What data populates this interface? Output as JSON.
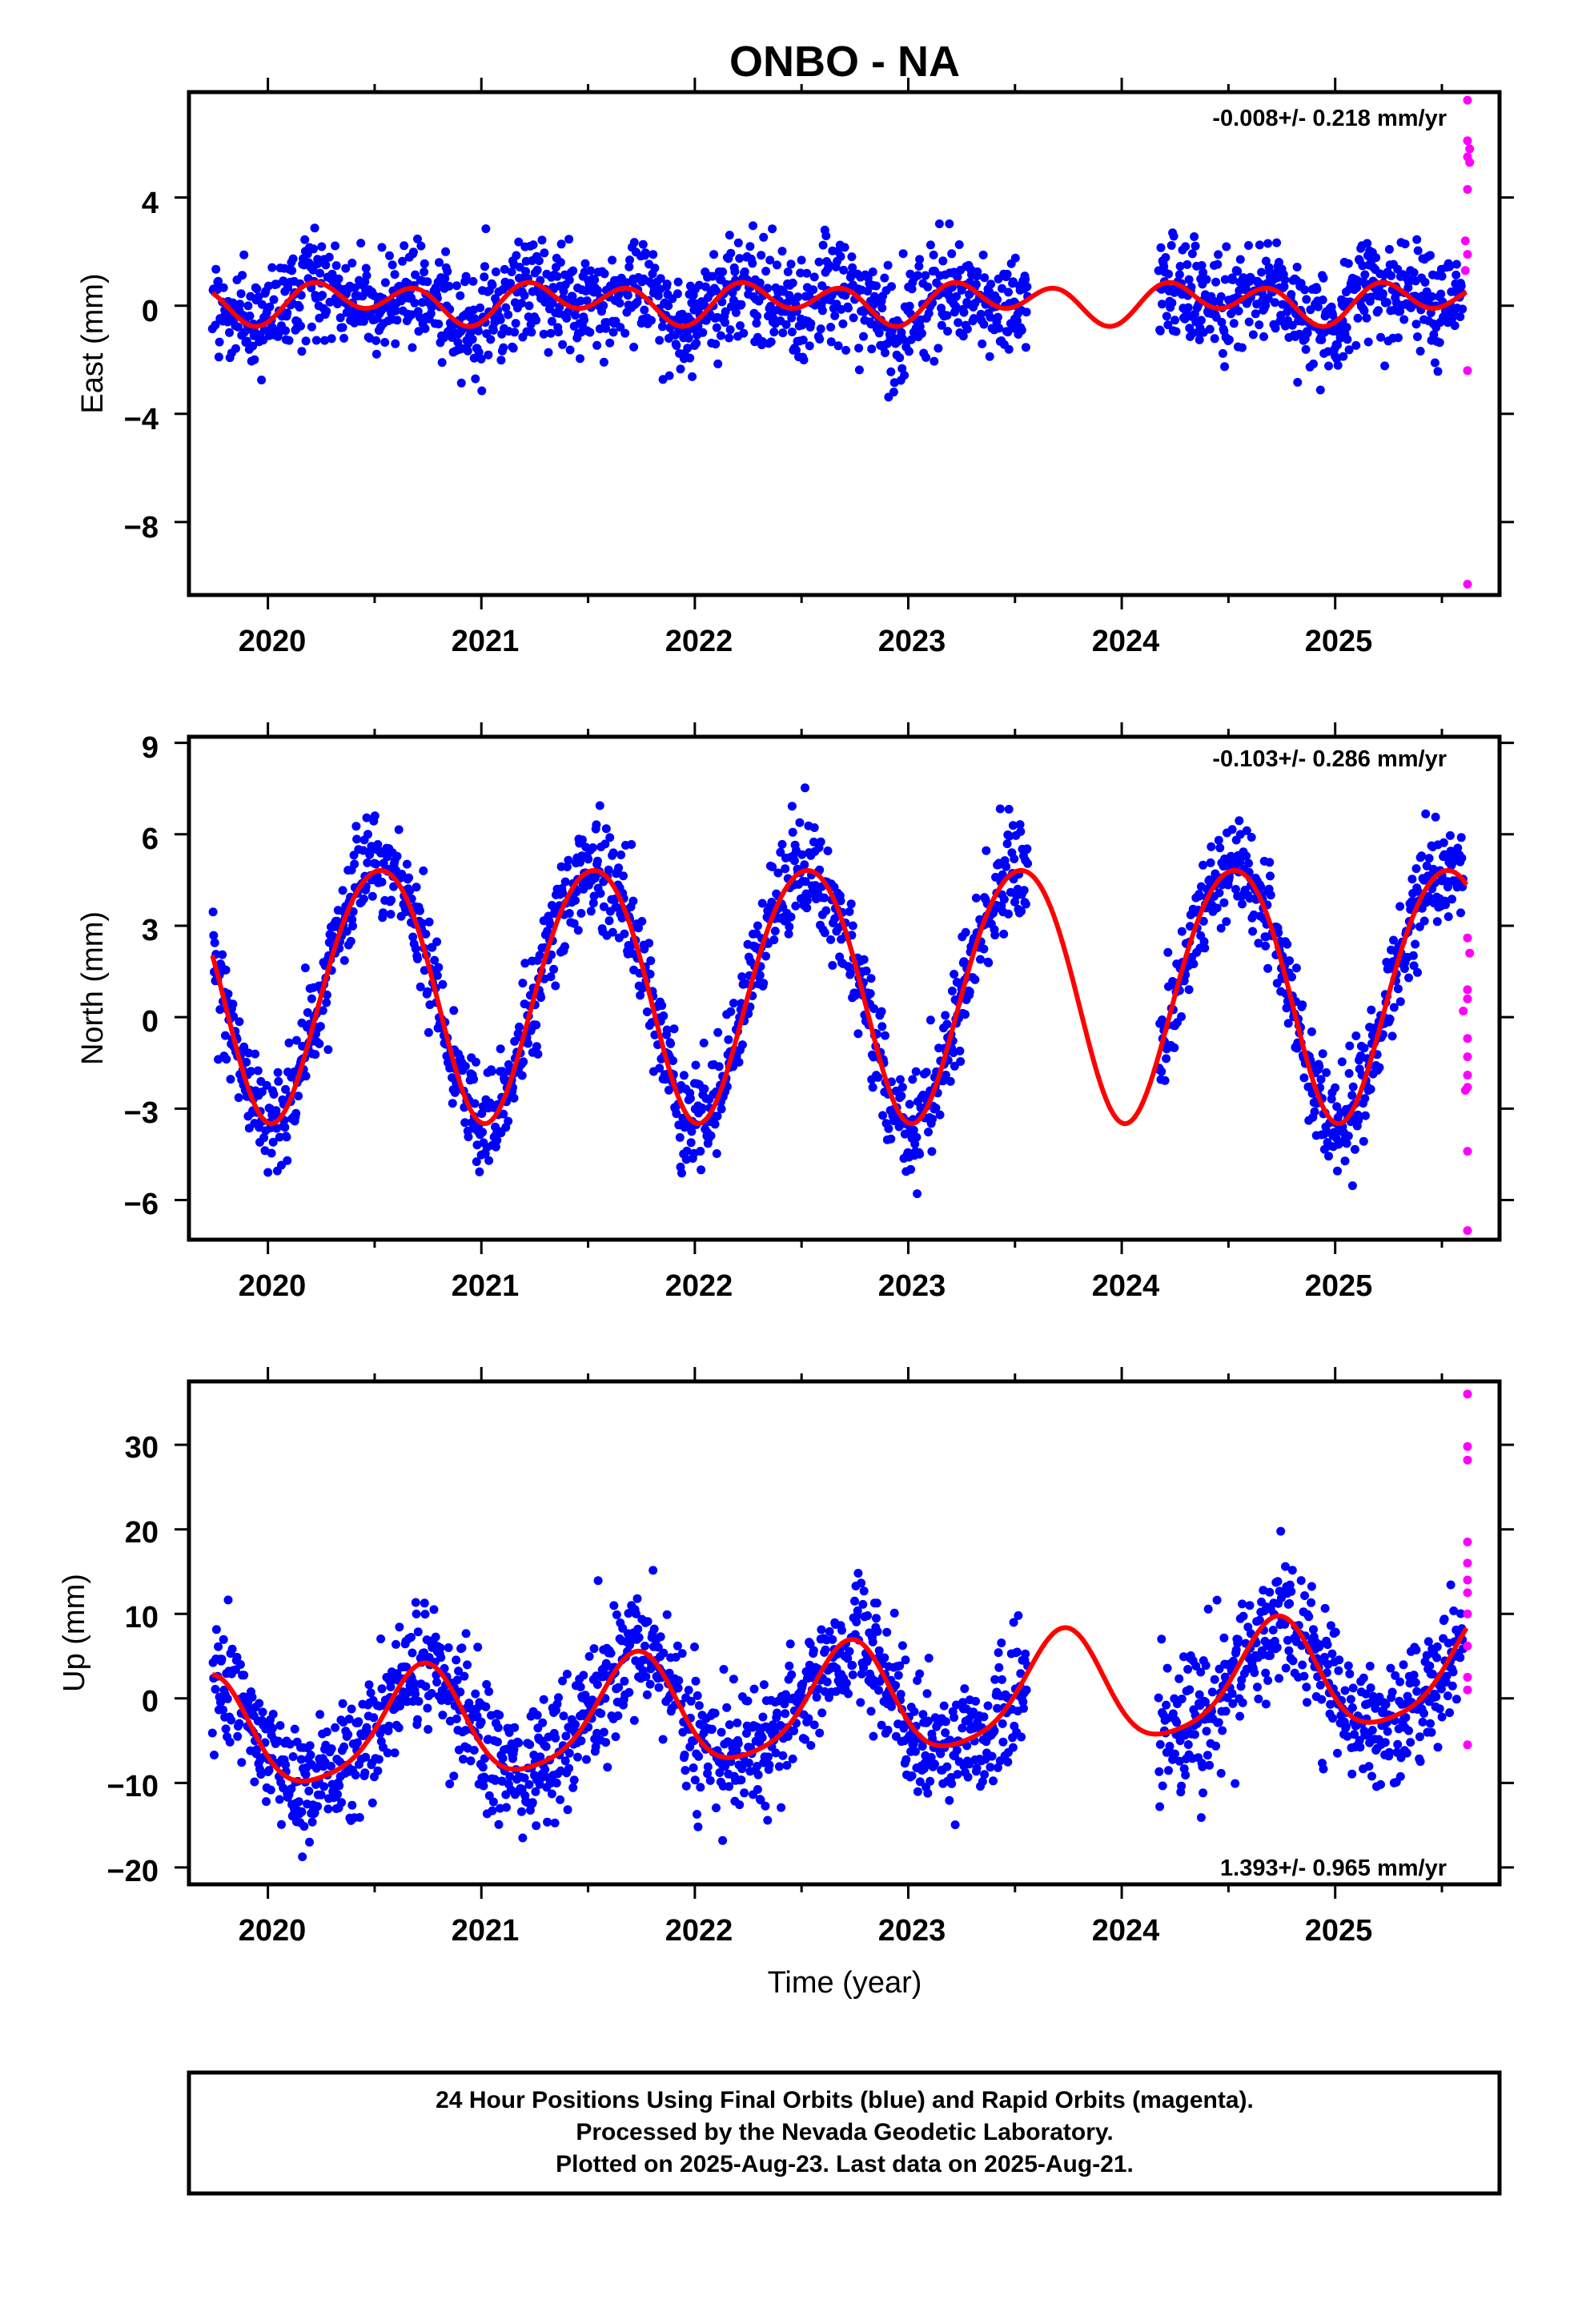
{
  "title": "ONBO - NA",
  "colors": {
    "final_points": "#0000ff",
    "rapid_points": "#ff00ff",
    "model_curve": "#ff0000",
    "frame": "#000000"
  },
  "footer": {
    "line1": "24 Hour Positions Using Final Orbits (blue) and Rapid Orbits (magenta).",
    "line2": "Processed by the Nevada Geodetic Laboratory.",
    "line3": "Plotted on 2025-Aug-23. Last data on 2025-Aug-21."
  },
  "chart_data": [
    {
      "type": "scatter",
      "name": "east",
      "ylabel": "East (mm)",
      "xlabel": "",
      "xlim": [
        2019.63,
        2025.77
      ],
      "ylim": [
        -10.7,
        7.9
      ],
      "xticks": [
        2020,
        2021,
        2022,
        2023,
        2024,
        2025
      ],
      "xtick_labels": [
        "2020",
        "2021",
        "2022",
        "2023",
        "2024",
        "2025"
      ],
      "yticks": [
        4,
        0,
        -4,
        -8
      ],
      "ytick_labels": [
        "4",
        "0",
        "−4",
        "−8"
      ],
      "rate_text": "-0.008+/- 0.218 mm/yr",
      "rate_position": "top-right",
      "model": {
        "offset": 0.15,
        "annual_amp": 0.35,
        "annual_phase": 2020.4,
        "semi_amp": 0.58,
        "semi_phase": 2020.2,
        "scatter": 0.95
      },
      "data_gap": [
        2023.56,
        2024.17
      ],
      "rapid_points": [
        {
          "x": 2025.62,
          "y": 7.6
        },
        {
          "x": 2025.62,
          "y": 6.1
        },
        {
          "x": 2025.63,
          "y": 5.8
        },
        {
          "x": 2025.62,
          "y": 5.5
        },
        {
          "x": 2025.63,
          "y": 5.3
        },
        {
          "x": 2025.62,
          "y": 4.3
        },
        {
          "x": 2025.61,
          "y": 2.4
        },
        {
          "x": 2025.62,
          "y": 1.9
        },
        {
          "x": 2025.61,
          "y": 1.3
        },
        {
          "x": 2025.62,
          "y": -2.4
        },
        {
          "x": 2025.62,
          "y": -10.3
        }
      ]
    },
    {
      "type": "scatter",
      "name": "north",
      "ylabel": "North (mm)",
      "xlabel": "",
      "xlim": [
        2019.63,
        2025.77
      ],
      "ylim": [
        -7.3,
        9.2
      ],
      "xticks": [
        2020,
        2021,
        2022,
        2023,
        2024,
        2025
      ],
      "xtick_labels": [
        "2020",
        "2021",
        "2022",
        "2023",
        "2024",
        "2025"
      ],
      "yticks": [
        9,
        6,
        3,
        0,
        -3,
        -6
      ],
      "ytick_labels": [
        "9",
        "6",
        "3",
        "0",
        "−3",
        "−6"
      ],
      "rate_text": "-0.103+/- 0.286 mm/yr",
      "rate_position": "top-right",
      "model": {
        "offset": 0.95,
        "annual_amp": 4.15,
        "annual_phase": 2020.52,
        "semi_amp": 0.3,
        "semi_phase": 2020.25,
        "scatter": 0.85
      },
      "data_gap": [
        2023.56,
        2024.17
      ],
      "rapid_points": [
        {
          "x": 2025.62,
          "y": 2.6
        },
        {
          "x": 2025.63,
          "y": 2.1
        },
        {
          "x": 2025.62,
          "y": 0.9
        },
        {
          "x": 2025.62,
          "y": 0.6
        },
        {
          "x": 2025.6,
          "y": 0.2
        },
        {
          "x": 2025.62,
          "y": -0.7
        },
        {
          "x": 2025.62,
          "y": -1.3
        },
        {
          "x": 2025.62,
          "y": -1.9
        },
        {
          "x": 2025.62,
          "y": -2.3
        },
        {
          "x": 2025.61,
          "y": -2.4
        },
        {
          "x": 2025.62,
          "y": -4.4
        },
        {
          "x": 2025.62,
          "y": -7.0
        }
      ]
    },
    {
      "type": "scatter",
      "name": "up",
      "ylabel": "Up (mm)",
      "xlabel": "Time (year)",
      "xlim": [
        2019.63,
        2025.77
      ],
      "ylim": [
        -22.0,
        37.5
      ],
      "xticks": [
        2020,
        2021,
        2022,
        2023,
        2024,
        2025
      ],
      "xtick_labels": [
        "2020",
        "2021",
        "2022",
        "2023",
        "2024",
        "2025"
      ],
      "yticks": [
        30,
        20,
        10,
        0,
        -10,
        -20
      ],
      "ytick_labels": [
        "30",
        "20",
        "10",
        "0",
        "−10",
        "−20"
      ],
      "rate_text": "1.393+/- 0.965 mm/yr",
      "rate_position": "bottom-right",
      "model": {
        "offset": -1.0,
        "annual_amp": 6.5,
        "annual_phase": 2020.72,
        "semi_amp": 1.2,
        "semi_phase": 2020.25,
        "scatter": 3.8,
        "trend": 1.39
      },
      "data_gap": [
        2023.56,
        2024.17
      ],
      "rapid_points": [
        {
          "x": 2025.62,
          "y": 36.0
        },
        {
          "x": 2025.62,
          "y": 29.8
        },
        {
          "x": 2025.62,
          "y": 28.2
        },
        {
          "x": 2025.62,
          "y": 18.5
        },
        {
          "x": 2025.62,
          "y": 16.0
        },
        {
          "x": 2025.62,
          "y": 14.0
        },
        {
          "x": 2025.62,
          "y": 12.5
        },
        {
          "x": 2025.62,
          "y": 10.0
        },
        {
          "x": 2025.62,
          "y": 6.2
        },
        {
          "x": 2025.62,
          "y": 2.5
        },
        {
          "x": 2025.62,
          "y": 1.0
        },
        {
          "x": 2025.62,
          "y": -5.5
        }
      ]
    }
  ]
}
